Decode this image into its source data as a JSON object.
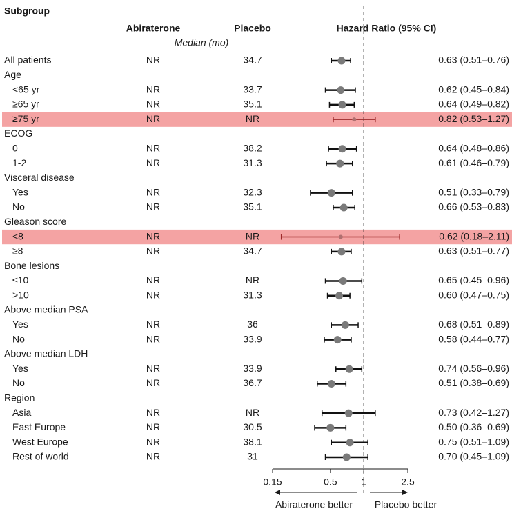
{
  "chart_data": {
    "type": "forest",
    "headers": {
      "subgroup": "Subgroup",
      "abiraterone": "Abiraterone",
      "placebo": "Placebo",
      "hazard_ratio": "Hazard Ratio (95% CI)",
      "median": "Median (mo)"
    },
    "log_scale": true,
    "xlim": [
      0.15,
      2.5
    ],
    "xticks": [
      0.15,
      0.5,
      1,
      2.5
    ],
    "reference_line": 1,
    "left_label": "Abiraterone better",
    "right_label": "Placebo better",
    "highlight_color": "#f4a3a3",
    "rows": [
      {
        "label": "All patients",
        "abiraterone": "NR",
        "placebo": 34.7,
        "hr": 0.63,
        "lower": 0.51,
        "upper": 0.76,
        "hr_label": "0.63 (0.51–0.76)"
      },
      {
        "label": "Age",
        "rows": [
          {
            "label": "<65 yr",
            "abiraterone": "NR",
            "placebo": 33.7,
            "hr": 0.62,
            "lower": 0.45,
            "upper": 0.84,
            "hr_label": "0.62 (0.45–0.84)"
          },
          {
            "label": "≥65 yr",
            "abiraterone": "NR",
            "placebo": 35.1,
            "hr": 0.64,
            "lower": 0.49,
            "upper": 0.82,
            "hr_label": "0.64 (0.49–0.82)"
          },
          {
            "label": "≥75 yr",
            "abiraterone": "NR",
            "placebo": "NR",
            "hr": 0.82,
            "lower": 0.53,
            "upper": 1.27,
            "hr_label": "0.82 (0.53–1.27)",
            "highlight": true
          }
        ]
      },
      {
        "label": "ECOG",
        "rows": [
          {
            "label": "0",
            "abiraterone": "NR",
            "placebo": 38.2,
            "hr": 0.64,
            "lower": 0.48,
            "upper": 0.86,
            "hr_label": "0.64 (0.48–0.86)"
          },
          {
            "label": "1-2",
            "abiraterone": "NR",
            "placebo": 31.3,
            "hr": 0.61,
            "lower": 0.46,
            "upper": 0.79,
            "hr_label": "0.61 (0.46–0.79)"
          }
        ]
      },
      {
        "label": "Visceral disease",
        "rows": [
          {
            "label": "Yes",
            "abiraterone": "NR",
            "placebo": 32.3,
            "hr": 0.51,
            "lower": 0.33,
            "upper": 0.79,
            "hr_label": "0.51 (0.33–0.79)"
          },
          {
            "label": "No",
            "abiraterone": "NR",
            "placebo": 35.1,
            "hr": 0.66,
            "lower": 0.53,
            "upper": 0.83,
            "hr_label": "0.66 (0.53–0.83)"
          }
        ]
      },
      {
        "label": "Gleason score",
        "rows": [
          {
            "label": "<8",
            "abiraterone": "NR",
            "placebo": "NR",
            "hr": 0.62,
            "lower": 0.18,
            "upper": 2.11,
            "hr_label": "0.62 (0.18–2.11)",
            "highlight": true
          },
          {
            "label": "≥8",
            "abiraterone": "NR",
            "placebo": 34.7,
            "hr": 0.63,
            "lower": 0.51,
            "upper": 0.77,
            "hr_label": "0.63 (0.51–0.77)"
          }
        ]
      },
      {
        "label": "Bone lesions",
        "rows": [
          {
            "label": "≤10",
            "abiraterone": "NR",
            "placebo": "NR",
            "hr": 0.65,
            "lower": 0.45,
            "upper": 0.96,
            "hr_label": "0.65 (0.45–0.96)"
          },
          {
            "label": ">10",
            "abiraterone": "NR",
            "placebo": 31.3,
            "hr": 0.6,
            "lower": 0.47,
            "upper": 0.75,
            "hr_label": "0.60 (0.47–0.75)"
          }
        ]
      },
      {
        "label": "Above median PSA",
        "rows": [
          {
            "label": "Yes",
            "abiraterone": "NR",
            "placebo": 36,
            "hr": 0.68,
            "lower": 0.51,
            "upper": 0.89,
            "hr_label": "0.68 (0.51–0.89)"
          },
          {
            "label": "No",
            "abiraterone": "NR",
            "placebo": 33.9,
            "hr": 0.58,
            "lower": 0.44,
            "upper": 0.77,
            "hr_label": "0.58 (0.44–0.77)"
          }
        ]
      },
      {
        "label": "Above median LDH",
        "rows": [
          {
            "label": "Yes",
            "abiraterone": "NR",
            "placebo": 33.9,
            "hr": 0.74,
            "lower": 0.56,
            "upper": 0.96,
            "hr_label": "0.74 (0.56–0.96)"
          },
          {
            "label": "No",
            "abiraterone": "NR",
            "placebo": 36.7,
            "hr": 0.51,
            "lower": 0.38,
            "upper": 0.69,
            "hr_label": "0.51 (0.38–0.69)"
          }
        ]
      },
      {
        "label": "Region",
        "rows": [
          {
            "label": "Asia",
            "abiraterone": "NR",
            "placebo": "NR",
            "hr": 0.73,
            "lower": 0.42,
            "upper": 1.27,
            "hr_label": "0.73 (0.42–1.27)"
          },
          {
            "label": "East Europe",
            "abiraterone": "NR",
            "placebo": 30.5,
            "hr": 0.5,
            "lower": 0.36,
            "upper": 0.69,
            "hr_label": "0.50 (0.36–0.69)"
          },
          {
            "label": "West Europe",
            "abiraterone": "NR",
            "placebo": 38.1,
            "hr": 0.75,
            "lower": 0.51,
            "upper": 1.09,
            "hr_label": "0.75 (0.51–1.09)"
          },
          {
            "label": "Rest of world",
            "abiraterone": "NR",
            "placebo": 31,
            "hr": 0.7,
            "lower": 0.45,
            "upper": 1.09,
            "hr_label": "0.70 (0.45–1.09)"
          }
        ]
      }
    ]
  }
}
